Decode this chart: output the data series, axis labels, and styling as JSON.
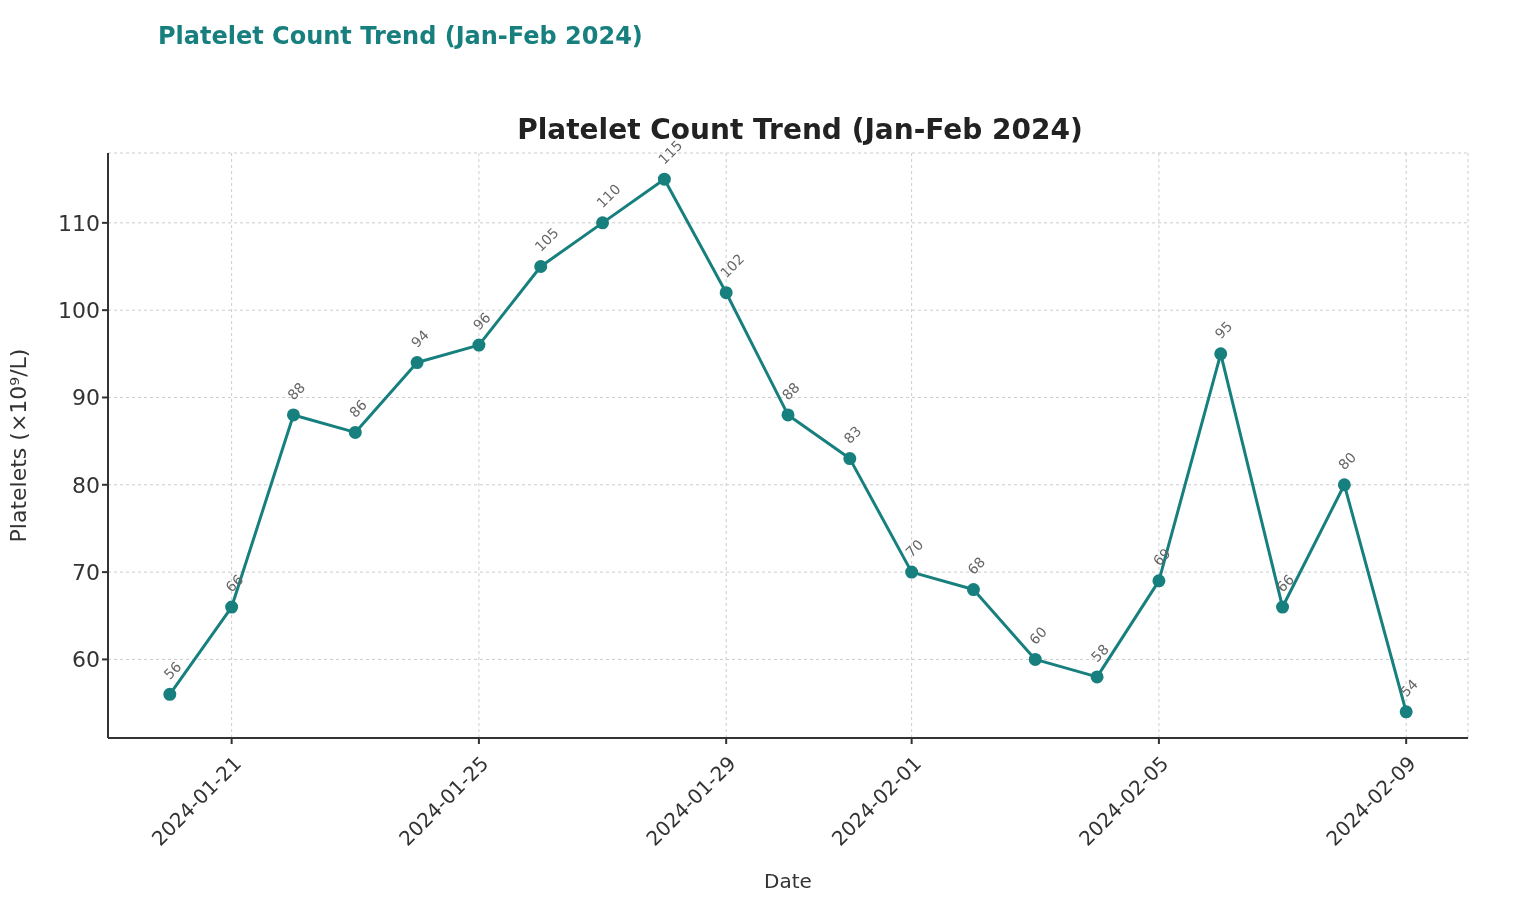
{
  "chart_data": {
    "type": "line",
    "title": "Platelet Count Trend (Jan-Feb 2024)",
    "xlabel": "Date",
    "ylabel": "Platelets (×10⁹/L)",
    "annotations": [
      "Platelet Count Trend (Jan-Feb 2024)"
    ],
    "x": [
      "2024-01-20",
      "2024-01-21",
      "2024-01-22",
      "2024-01-23",
      "2024-01-24",
      "2024-01-25",
      "2024-01-26",
      "2024-01-27",
      "2024-01-28",
      "2024-01-29",
      "2024-01-30",
      "2024-01-31",
      "2024-02-01",
      "2024-02-02",
      "2024-02-03",
      "2024-02-04",
      "2024-02-05",
      "2024-02-06",
      "2024-02-07",
      "2024-02-08",
      "2024-02-09"
    ],
    "series": [
      {
        "color": "#17807e",
        "values": [
          56,
          66,
          88,
          86,
          94,
          96,
          105,
          110,
          115,
          102,
          88,
          83,
          70,
          68,
          60,
          58,
          69,
          95,
          66,
          80,
          54
        ]
      }
    ],
    "xlim": [
      "2024-01-19",
      "2024-02-10"
    ],
    "xticks": [
      "2024-01-21",
      "2024-01-25",
      "2024-01-29",
      "2024-02-01",
      "2024-02-05",
      "2024-02-09"
    ],
    "ylim": [
      51,
      118
    ],
    "yticks": [
      60,
      70,
      80,
      90,
      100,
      110
    ],
    "grid": true,
    "marker": "circle",
    "line_style": "solid",
    "data_labels": true
  }
}
